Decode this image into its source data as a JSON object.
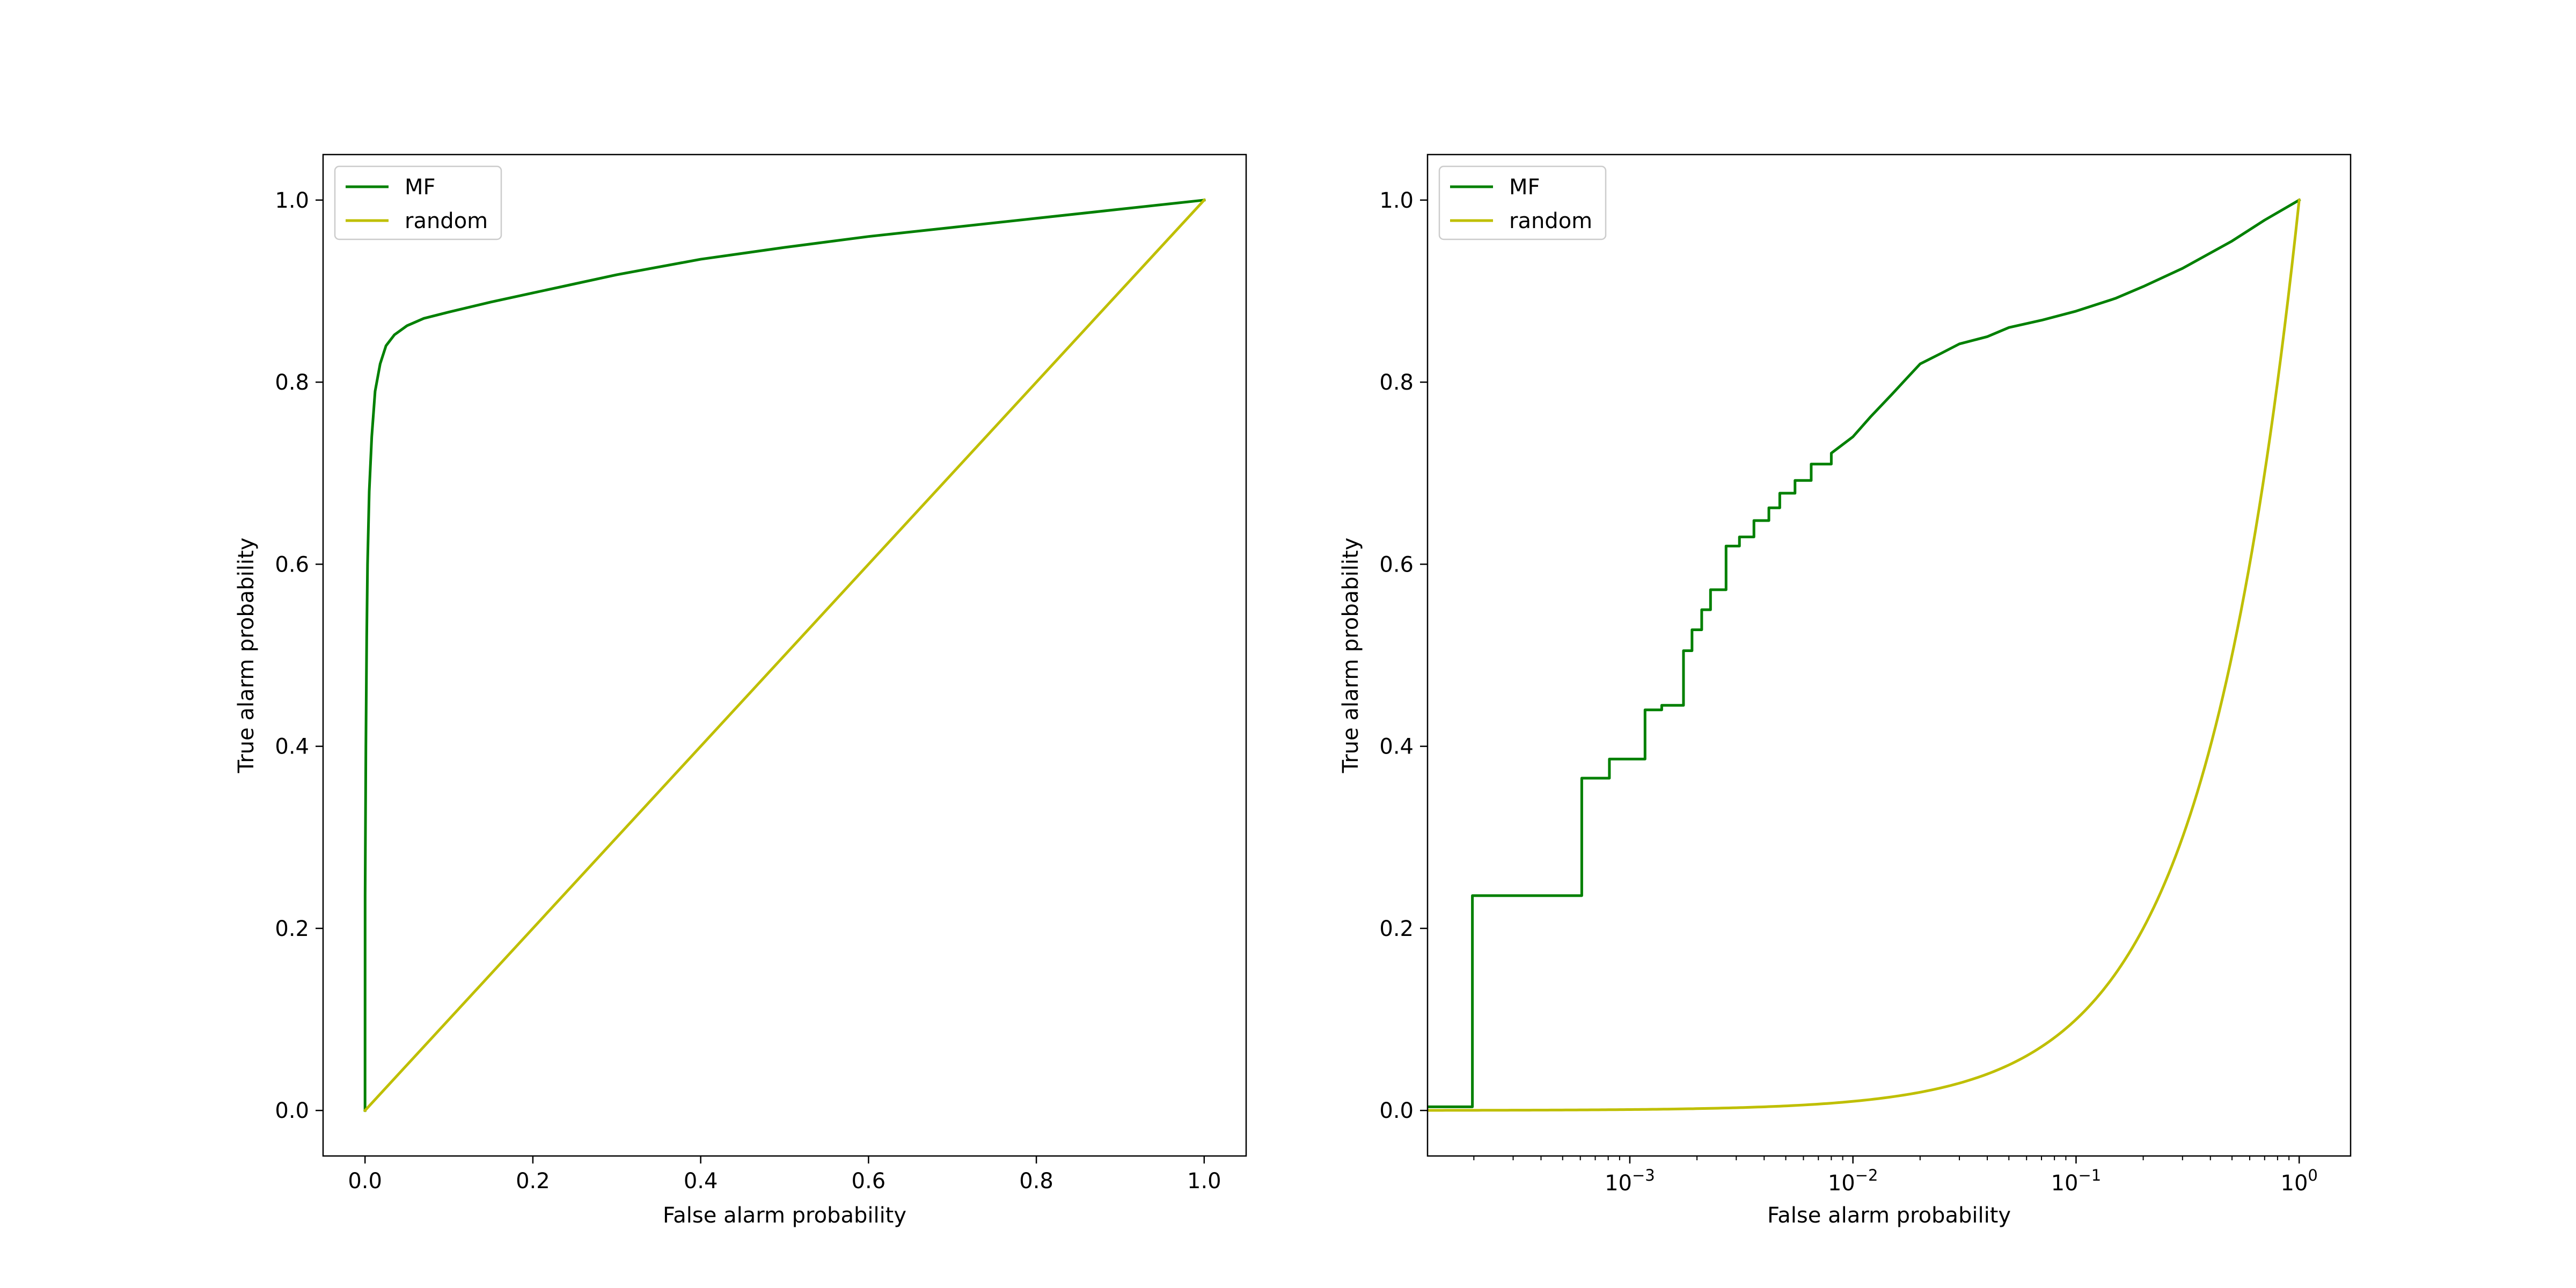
{
  "colors": {
    "mf": "#008000",
    "random": "#bfbf00",
    "axis": "#000000",
    "legend_border": "#cccccc"
  },
  "chart_data": [
    {
      "type": "line",
      "xscale": "linear",
      "xlabel": "False alarm probability",
      "ylabel": "True alarm probability",
      "xlim": [
        -0.05,
        1.05
      ],
      "ylim": [
        -0.05,
        1.05
      ],
      "xticks": [
        0.0,
        0.2,
        0.4,
        0.6,
        0.8,
        1.0
      ],
      "xtick_labels": [
        "0.0",
        "0.2",
        "0.4",
        "0.6",
        "0.8",
        "1.0"
      ],
      "yticks": [
        0.0,
        0.2,
        0.4,
        0.6,
        0.8,
        1.0
      ],
      "ytick_labels": [
        "0.0",
        "0.2",
        "0.4",
        "0.6",
        "0.8",
        "1.0"
      ],
      "legend": {
        "position": "upper-left",
        "entries": [
          "MF",
          "random"
        ]
      },
      "series": [
        {
          "name": "MF",
          "x": [
            0,
            0.0001,
            0.001,
            0.002,
            0.003,
            0.005,
            0.008,
            0.012,
            0.018,
            0.025,
            0.035,
            0.05,
            0.07,
            0.1,
            0.15,
            0.2,
            0.25,
            0.3,
            0.4,
            0.5,
            0.6,
            0.7,
            0.8,
            0.9,
            1.0
          ],
          "y": [
            0,
            0.236,
            0.4,
            0.52,
            0.6,
            0.68,
            0.74,
            0.79,
            0.82,
            0.84,
            0.852,
            0.862,
            0.87,
            0.877,
            0.888,
            0.898,
            0.908,
            0.918,
            0.935,
            0.948,
            0.96,
            0.97,
            0.98,
            0.99,
            1.0
          ]
        },
        {
          "name": "random",
          "x": [
            0,
            1
          ],
          "y": [
            0,
            1
          ]
        }
      ]
    },
    {
      "type": "line",
      "xscale": "log",
      "xlabel": "False alarm probability",
      "ylabel": "True alarm probability",
      "xlim": [
        0.000124,
        1.7
      ],
      "ylim": [
        -0.05,
        1.05
      ],
      "xticks": [
        0.001,
        0.01,
        0.1,
        1
      ],
      "xtick_labels": [
        {
          "base": "10",
          "exp": "−3"
        },
        {
          "base": "10",
          "exp": "−2"
        },
        {
          "base": "10",
          "exp": "−1"
        },
        {
          "base": "10",
          "exp": "0"
        }
      ],
      "yticks": [
        0.0,
        0.2,
        0.4,
        0.6,
        0.8,
        1.0
      ],
      "ytick_labels": [
        "0.0",
        "0.2",
        "0.4",
        "0.6",
        "0.8",
        "1.0"
      ],
      "legend": {
        "position": "upper-left",
        "entries": [
          "MF",
          "random"
        ]
      },
      "series": [
        {
          "name": "MF",
          "step": true,
          "x": [
            0.000124,
            0.000197,
            0.000197,
            0.000609,
            0.000609,
            0.00081,
            0.00081,
            0.00117,
            0.00117,
            0.00139,
            0.00139,
            0.00174,
            0.00174,
            0.0019,
            0.0019,
            0.0021,
            0.0021,
            0.0023,
            0.0023,
            0.0027,
            0.0027,
            0.0031,
            0.0031,
            0.0036,
            0.0036,
            0.0042,
            0.0042,
            0.0047,
            0.0047,
            0.0055,
            0.0055,
            0.0065,
            0.0065,
            0.008,
            0.008,
            0.01,
            0.012,
            0.015,
            0.018,
            0.02,
            0.025,
            0.03,
            0.04,
            0.05,
            0.07,
            0.1,
            0.15,
            0.2,
            0.3,
            0.5,
            0.7,
            1.0
          ],
          "y": [
            0.004,
            0.004,
            0.236,
            0.236,
            0.365,
            0.365,
            0.386,
            0.386,
            0.44,
            0.44,
            0.445,
            0.445,
            0.505,
            0.505,
            0.528,
            0.528,
            0.55,
            0.55,
            0.572,
            0.572,
            0.62,
            0.62,
            0.63,
            0.63,
            0.648,
            0.648,
            0.662,
            0.662,
            0.678,
            0.678,
            0.692,
            0.692,
            0.71,
            0.71,
            0.722,
            0.74,
            0.762,
            0.787,
            0.808,
            0.82,
            0.832,
            0.842,
            0.85,
            0.86,
            0.868,
            0.878,
            0.892,
            0.905,
            0.925,
            0.955,
            0.978,
            1.0
          ]
        },
        {
          "name": "random",
          "x": [
            0.000124,
            1.0
          ],
          "y": [
            0.000124,
            1.0
          ]
        }
      ]
    }
  ]
}
